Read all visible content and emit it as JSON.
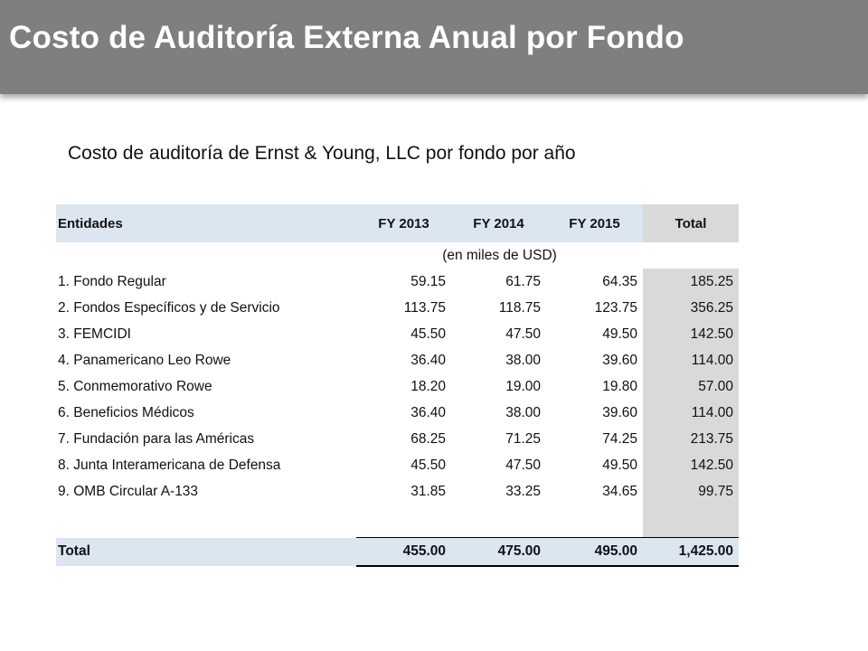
{
  "page": {
    "title": "Costo de Auditoría Externa Anual por Fondo",
    "subtitle": "Costo de auditoría de Ernst & Young, LLC por fondo por año"
  },
  "table": {
    "headers": [
      "Entidades",
      "FY 2013",
      "FY 2014",
      "FY 2015",
      "Total"
    ],
    "unit_note": "(en miles de USD)",
    "rows": [
      {
        "name": "1. Fondo Regular",
        "fy2013": "59.15",
        "fy2014": "61.75",
        "fy2015": "64.35",
        "total": "185.25"
      },
      {
        "name": "2. Fondos Específicos y de Servicio",
        "fy2013": "113.75",
        "fy2014": "118.75",
        "fy2015": "123.75",
        "total": "356.25"
      },
      {
        "name": "3. FEMCIDI",
        "fy2013": "45.50",
        "fy2014": "47.50",
        "fy2015": "49.50",
        "total": "142.50"
      },
      {
        "name": "4. Panamericano Leo Rowe",
        "fy2013": "36.40",
        "fy2014": "38.00",
        "fy2015": "39.60",
        "total": "114.00"
      },
      {
        "name": "5. Conmemorativo Rowe",
        "fy2013": "18.20",
        "fy2014": "19.00",
        "fy2015": "19.80",
        "total": "57.00"
      },
      {
        "name": "6. Beneficios Médicos",
        "fy2013": "36.40",
        "fy2014": "38.00",
        "fy2015": "39.60",
        "total": "114.00"
      },
      {
        "name": "7. Fundación para las Américas",
        "fy2013": "68.25",
        "fy2014": "71.25",
        "fy2015": "74.25",
        "total": "213.75"
      },
      {
        "name": "8. Junta Interamericana de Defensa",
        "fy2013": "45.50",
        "fy2014": "47.50",
        "fy2015": "49.50",
        "total": "142.50"
      },
      {
        "name": "9. OMB Circular A-133",
        "fy2013": "31.85",
        "fy2014": "33.25",
        "fy2015": "34.65",
        "total": "99.75"
      }
    ],
    "totals": {
      "label": "Total",
      "fy2013": "455.00",
      "fy2014": "475.00",
      "fy2015": "495.00",
      "total": "1,425.00"
    }
  },
  "colors": {
    "title_bar": "#7f7f7f",
    "header_fill": "#dce6f1",
    "total_column_fill": "#d9d9d9"
  }
}
